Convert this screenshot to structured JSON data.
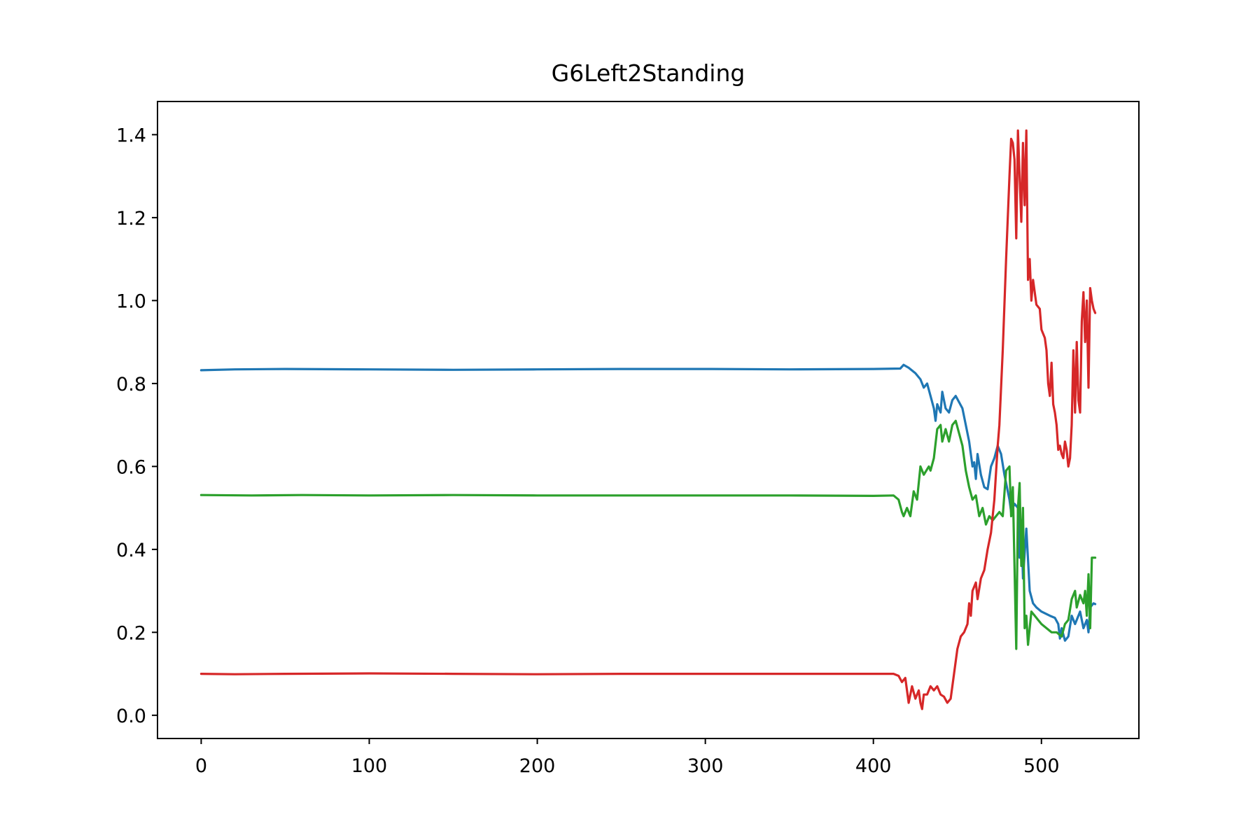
{
  "chart_data": {
    "type": "line",
    "title": "G6Left2Standing",
    "xlabel": "",
    "ylabel": "",
    "xlim": [
      -26,
      558
    ],
    "ylim": [
      -0.056,
      1.48
    ],
    "xticks": [
      0,
      100,
      200,
      300,
      400,
      500
    ],
    "yticks": [
      0.0,
      0.2,
      0.4,
      0.6,
      0.8,
      1.0,
      1.2,
      1.4
    ],
    "xtick_labels": [
      "0",
      "100",
      "200",
      "300",
      "400",
      "500"
    ],
    "ytick_labels": [
      "0.0",
      "0.2",
      "0.4",
      "0.6",
      "0.8",
      "1.0",
      "1.2",
      "1.4"
    ],
    "grid": false,
    "legend": "none",
    "series": [
      {
        "color": "#1f77b4",
        "points": [
          [
            0,
            0.832
          ],
          [
            20,
            0.834
          ],
          [
            50,
            0.835
          ],
          [
            100,
            0.834
          ],
          [
            150,
            0.833
          ],
          [
            200,
            0.834
          ],
          [
            250,
            0.835
          ],
          [
            300,
            0.835
          ],
          [
            350,
            0.834
          ],
          [
            400,
            0.835
          ],
          [
            416,
            0.836
          ],
          [
            418,
            0.845
          ],
          [
            421,
            0.838
          ],
          [
            425,
            0.825
          ],
          [
            428,
            0.81
          ],
          [
            430,
            0.79
          ],
          [
            432,
            0.8
          ],
          [
            434,
            0.77
          ],
          [
            436,
            0.74
          ],
          [
            437,
            0.71
          ],
          [
            438,
            0.75
          ],
          [
            440,
            0.73
          ],
          [
            441,
            0.78
          ],
          [
            443,
            0.74
          ],
          [
            445,
            0.73
          ],
          [
            447,
            0.76
          ],
          [
            449,
            0.77
          ],
          [
            451,
            0.755
          ],
          [
            453,
            0.74
          ],
          [
            455,
            0.7
          ],
          [
            457,
            0.66
          ],
          [
            459,
            0.6
          ],
          [
            460,
            0.61
          ],
          [
            461,
            0.57
          ],
          [
            462,
            0.63
          ],
          [
            464,
            0.58
          ],
          [
            466,
            0.55
          ],
          [
            468,
            0.545
          ],
          [
            470,
            0.6
          ],
          [
            472,
            0.62
          ],
          [
            474,
            0.65
          ],
          [
            476,
            0.63
          ],
          [
            478,
            0.58
          ],
          [
            480,
            0.54
          ],
          [
            481,
            0.52
          ],
          [
            482,
            0.49
          ],
          [
            484,
            0.51
          ],
          [
            486,
            0.5
          ],
          [
            487,
            0.38
          ],
          [
            488,
            0.47
          ],
          [
            489,
            0.33
          ],
          [
            491,
            0.45
          ],
          [
            493,
            0.3
          ],
          [
            495,
            0.27
          ],
          [
            497,
            0.26
          ],
          [
            500,
            0.25
          ],
          [
            505,
            0.24
          ],
          [
            508,
            0.235
          ],
          [
            510,
            0.22
          ],
          [
            511,
            0.185
          ],
          [
            512,
            0.21
          ],
          [
            514,
            0.18
          ],
          [
            516,
            0.19
          ],
          [
            518,
            0.24
          ],
          [
            520,
            0.22
          ],
          [
            523,
            0.25
          ],
          [
            525,
            0.21
          ],
          [
            527,
            0.23
          ],
          [
            528,
            0.2
          ],
          [
            529,
            0.26
          ],
          [
            531,
            0.27
          ],
          [
            532,
            0.268
          ]
        ]
      },
      {
        "color": "#2ca02c",
        "points": [
          [
            0,
            0.531
          ],
          [
            30,
            0.53
          ],
          [
            60,
            0.531
          ],
          [
            100,
            0.53
          ],
          [
            150,
            0.531
          ],
          [
            200,
            0.53
          ],
          [
            250,
            0.53
          ],
          [
            300,
            0.53
          ],
          [
            350,
            0.53
          ],
          [
            400,
            0.529
          ],
          [
            412,
            0.53
          ],
          [
            415,
            0.52
          ],
          [
            417,
            0.49
          ],
          [
            418,
            0.48
          ],
          [
            420,
            0.5
          ],
          [
            422,
            0.48
          ],
          [
            424,
            0.54
          ],
          [
            426,
            0.52
          ],
          [
            428,
            0.6
          ],
          [
            430,
            0.58
          ],
          [
            433,
            0.6
          ],
          [
            434,
            0.59
          ],
          [
            436,
            0.62
          ],
          [
            438,
            0.69
          ],
          [
            440,
            0.7
          ],
          [
            441,
            0.66
          ],
          [
            443,
            0.69
          ],
          [
            445,
            0.66
          ],
          [
            447,
            0.7
          ],
          [
            449,
            0.71
          ],
          [
            451,
            0.68
          ],
          [
            453,
            0.65
          ],
          [
            455,
            0.59
          ],
          [
            457,
            0.55
          ],
          [
            459,
            0.52
          ],
          [
            461,
            0.53
          ],
          [
            463,
            0.48
          ],
          [
            465,
            0.5
          ],
          [
            467,
            0.46
          ],
          [
            469,
            0.48
          ],
          [
            471,
            0.47
          ],
          [
            473,
            0.48
          ],
          [
            475,
            0.49
          ],
          [
            477,
            0.48
          ],
          [
            479,
            0.59
          ],
          [
            481,
            0.6
          ],
          [
            482,
            0.48
          ],
          [
            483,
            0.55
          ],
          [
            485,
            0.16
          ],
          [
            486,
            0.5
          ],
          [
            487,
            0.56
          ],
          [
            488,
            0.36
          ],
          [
            489,
            0.5
          ],
          [
            490,
            0.21
          ],
          [
            491,
            0.24
          ],
          [
            492,
            0.17
          ],
          [
            494,
            0.25
          ],
          [
            496,
            0.24
          ],
          [
            498,
            0.23
          ],
          [
            500,
            0.22
          ],
          [
            503,
            0.21
          ],
          [
            506,
            0.2
          ],
          [
            509,
            0.2
          ],
          [
            512,
            0.19
          ],
          [
            514,
            0.22
          ],
          [
            516,
            0.23
          ],
          [
            518,
            0.28
          ],
          [
            520,
            0.3
          ],
          [
            521,
            0.26
          ],
          [
            523,
            0.29
          ],
          [
            525,
            0.27
          ],
          [
            526,
            0.3
          ],
          [
            527,
            0.24
          ],
          [
            528,
            0.34
          ],
          [
            529,
            0.21
          ],
          [
            530,
            0.38
          ],
          [
            531,
            0.38
          ],
          [
            532,
            0.38
          ]
        ]
      },
      {
        "color": "#d62728",
        "points": [
          [
            0,
            0.1
          ],
          [
            20,
            0.099
          ],
          [
            50,
            0.1
          ],
          [
            100,
            0.101
          ],
          [
            150,
            0.1
          ],
          [
            200,
            0.099
          ],
          [
            250,
            0.1
          ],
          [
            300,
            0.1
          ],
          [
            350,
            0.1
          ],
          [
            400,
            0.1
          ],
          [
            412,
            0.1
          ],
          [
            415,
            0.095
          ],
          [
            417,
            0.08
          ],
          [
            419,
            0.09
          ],
          [
            421,
            0.03
          ],
          [
            423,
            0.07
          ],
          [
            425,
            0.04
          ],
          [
            427,
            0.06
          ],
          [
            428,
            0.03
          ],
          [
            429,
            0.015
          ],
          [
            430,
            0.05
          ],
          [
            432,
            0.05
          ],
          [
            434,
            0.07
          ],
          [
            436,
            0.06
          ],
          [
            438,
            0.07
          ],
          [
            440,
            0.05
          ],
          [
            442,
            0.045
          ],
          [
            444,
            0.03
          ],
          [
            446,
            0.04
          ],
          [
            448,
            0.1
          ],
          [
            450,
            0.16
          ],
          [
            452,
            0.19
          ],
          [
            454,
            0.2
          ],
          [
            456,
            0.22
          ],
          [
            457,
            0.27
          ],
          [
            458,
            0.24
          ],
          [
            459,
            0.3
          ],
          [
            461,
            0.32
          ],
          [
            462,
            0.28
          ],
          [
            464,
            0.33
          ],
          [
            466,
            0.35
          ],
          [
            468,
            0.4
          ],
          [
            470,
            0.44
          ],
          [
            472,
            0.52
          ],
          [
            474,
            0.65
          ],
          [
            475,
            0.7
          ],
          [
            477,
            0.88
          ],
          [
            479,
            1.1
          ],
          [
            481,
            1.3
          ],
          [
            482,
            1.39
          ],
          [
            483,
            1.38
          ],
          [
            484,
            1.34
          ],
          [
            485,
            1.15
          ],
          [
            486,
            1.41
          ],
          [
            487,
            1.3
          ],
          [
            488,
            1.19
          ],
          [
            489,
            1.38
          ],
          [
            490,
            1.23
          ],
          [
            491,
            1.41
          ],
          [
            492,
            1.05
          ],
          [
            493,
            1.1
          ],
          [
            494,
            1.0
          ],
          [
            495,
            1.05
          ],
          [
            497,
            0.99
          ],
          [
            499,
            0.98
          ],
          [
            500,
            0.93
          ],
          [
            502,
            0.91
          ],
          [
            503,
            0.88
          ],
          [
            504,
            0.8
          ],
          [
            505,
            0.77
          ],
          [
            506,
            0.85
          ],
          [
            507,
            0.75
          ],
          [
            508,
            0.73
          ],
          [
            509,
            0.7
          ],
          [
            510,
            0.64
          ],
          [
            511,
            0.65
          ],
          [
            512,
            0.63
          ],
          [
            513,
            0.62
          ],
          [
            514,
            0.66
          ],
          [
            515,
            0.64
          ],
          [
            516,
            0.6
          ],
          [
            517,
            0.62
          ],
          [
            518,
            0.7
          ],
          [
            519,
            0.88
          ],
          [
            520,
            0.73
          ],
          [
            521,
            0.9
          ],
          [
            522,
            0.76
          ],
          [
            523,
            0.73
          ],
          [
            524,
            0.95
          ],
          [
            525,
            1.02
          ],
          [
            526,
            0.9
          ],
          [
            527,
            1.0
          ],
          [
            528,
            0.79
          ],
          [
            529,
            1.03
          ],
          [
            530,
            1.0
          ],
          [
            531,
            0.98
          ],
          [
            532,
            0.97
          ]
        ]
      }
    ]
  }
}
